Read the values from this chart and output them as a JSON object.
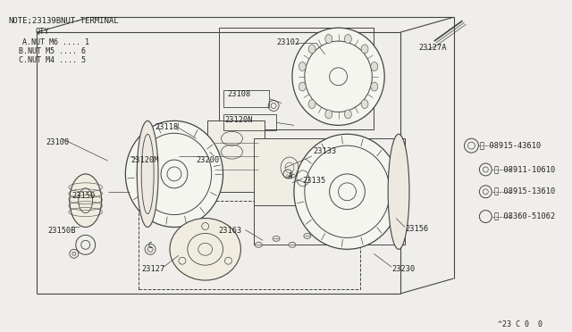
{
  "bg_color": "#f0eeeb",
  "line_color": "#444444",
  "text_color": "#222222",
  "note_line": "NOTE;23139BNUT-TERMINAL",
  "qty_line": "QTY",
  "qty_items": [
    "A.NUT M6 .... 1",
    "B.NUT M5 .... 6",
    "C.NUT M4 .... 5"
  ],
  "footer": "^23 C 0  0"
}
